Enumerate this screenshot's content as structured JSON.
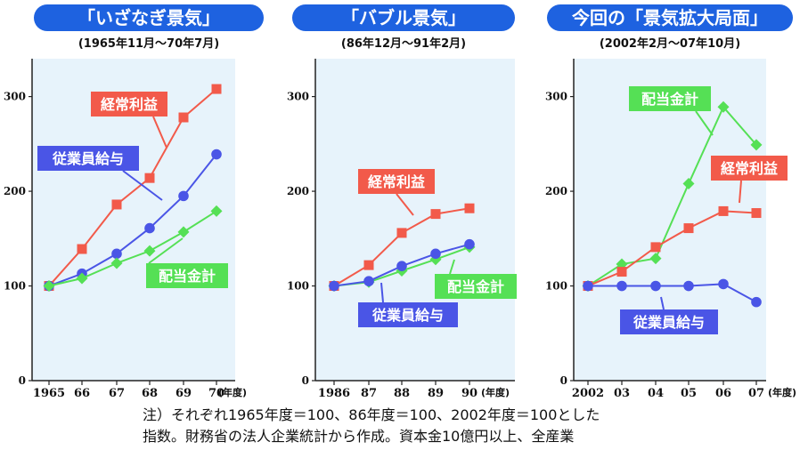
{
  "chart_data": [
    {
      "type": "line",
      "title": "「いざなぎ景気」",
      "subtitle": "(1965年11月～70年7月)",
      "xlabel": "(年度)",
      "categories": [
        "1965",
        "66",
        "67",
        "68",
        "69",
        "70"
      ],
      "ylim": [
        0,
        340
      ],
      "yticks": [
        0,
        100,
        200,
        300
      ],
      "series": [
        {
          "name": "経常利益",
          "color": "#f25a4a",
          "marker": "square",
          "values": [
            100,
            139,
            186,
            214,
            278,
            308
          ]
        },
        {
          "name": "従業員給与",
          "color": "#4a55e6",
          "marker": "circle",
          "values": [
            100,
            113,
            134,
            161,
            195,
            239
          ]
        },
        {
          "name": "配当金計",
          "color": "#55e055",
          "marker": "diamond",
          "values": [
            100,
            108,
            124,
            137,
            157,
            179
          ]
        }
      ]
    },
    {
      "type": "line",
      "title": "「バブル景気」",
      "subtitle": "(86年12月～91年2月)",
      "xlabel": "(年度)",
      "categories": [
        "1986",
        "87",
        "88",
        "89",
        "90"
      ],
      "ylim": [
        0,
        340
      ],
      "yticks": [
        0,
        100,
        200,
        300
      ],
      "series": [
        {
          "name": "経常利益",
          "color": "#f25a4a",
          "marker": "square",
          "values": [
            100,
            122,
            156,
            176,
            182
          ]
        },
        {
          "name": "配当金計",
          "color": "#55e055",
          "marker": "diamond",
          "values": [
            100,
            104,
            116,
            128,
            141
          ]
        },
        {
          "name": "従業員給与",
          "color": "#4a55e6",
          "marker": "circle",
          "values": [
            100,
            105,
            121,
            134,
            144
          ]
        }
      ]
    },
    {
      "type": "line",
      "title": "今回の「景気拡大局面」",
      "subtitle": "(2002年2月～07年10月)",
      "xlabel": "(年度)",
      "categories": [
        "2002",
        "03",
        "04",
        "05",
        "06",
        "07"
      ],
      "ylim": [
        0,
        340
      ],
      "yticks": [
        0,
        100,
        200,
        300
      ],
      "series": [
        {
          "name": "配当金計",
          "color": "#55e055",
          "marker": "diamond",
          "values": [
            100,
            123,
            129,
            208,
            289,
            249
          ]
        },
        {
          "name": "経常利益",
          "color": "#f25a4a",
          "marker": "square",
          "values": [
            100,
            115,
            141,
            161,
            179,
            177
          ]
        },
        {
          "name": "従業員給与",
          "color": "#4a55e6",
          "marker": "circle",
          "values": [
            100,
            100,
            100,
            100,
            102,
            83
          ]
        }
      ]
    }
  ],
  "footnote": {
    "line1": "注）それぞれ1965年度＝100、86年度＝100、2002年度＝100とした",
    "line2": "指数。財務省の法人企業統計から作成。資本金10億円以上、全産業"
  }
}
